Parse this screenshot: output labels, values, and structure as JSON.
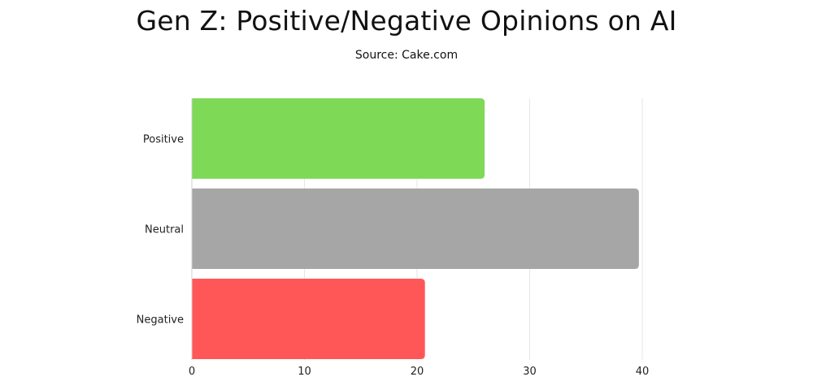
{
  "chart_data": {
    "type": "bar",
    "orientation": "horizontal",
    "title": "Gen Z: Positive/Negative Opinions on AI",
    "subtitle": "Source: Cake.com",
    "categories": [
      "Positive",
      "Neutral",
      "Negative"
    ],
    "values": [
      26,
      39.7,
      20.7
    ],
    "colors": [
      "#7ed957",
      "#a6a6a6",
      "#ff5757"
    ],
    "xlim": [
      0,
      40
    ],
    "xticks": [
      0,
      10,
      20,
      30,
      40
    ],
    "grid": true,
    "legend": "none"
  }
}
